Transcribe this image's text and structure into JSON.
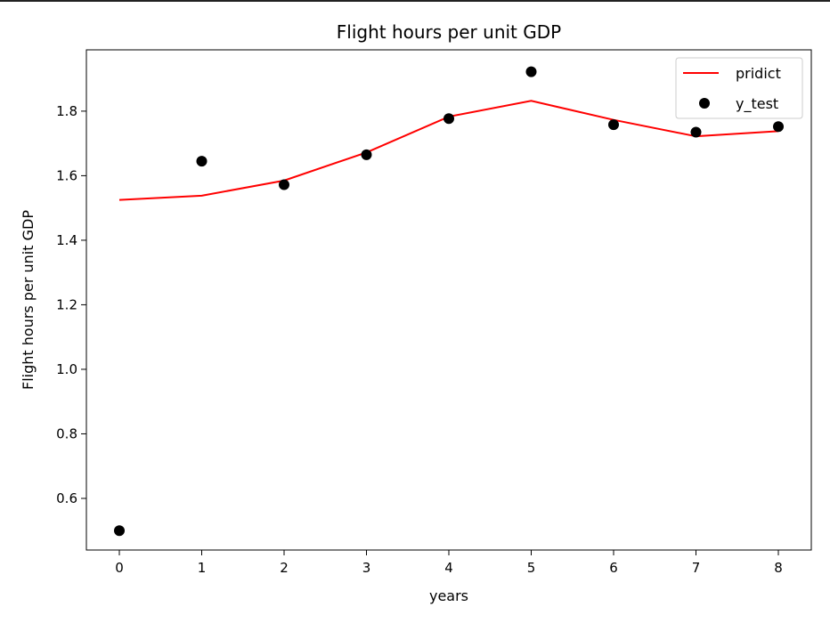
{
  "chart_data": {
    "type": "line",
    "title": "Flight hours per unit GDP",
    "xlabel": "years",
    "ylabel": "Flight hours per unit GDP",
    "x": [
      0,
      1,
      2,
      3,
      4,
      5,
      6,
      7,
      8
    ],
    "xticks": [
      "0",
      "1",
      "2",
      "3",
      "4",
      "5",
      "6",
      "7",
      "8"
    ],
    "yticks": [
      "0.6",
      "0.8",
      "1.0",
      "1.2",
      "1.4",
      "1.6",
      "1.8"
    ],
    "xlim": [
      -0.4,
      8.4
    ],
    "ylim": [
      0.44,
      1.99
    ],
    "grid": false,
    "legend_position": "top-right",
    "series": [
      {
        "name": "pridict",
        "type": "line",
        "color": "#ff0000",
        "values": [
          1.525,
          1.538,
          1.585,
          1.672,
          1.783,
          1.832,
          1.773,
          1.722,
          1.738
        ]
      },
      {
        "name": "y_test",
        "type": "scatter",
        "color": "#000000",
        "values": [
          0.5,
          1.645,
          1.572,
          1.665,
          1.777,
          1.922,
          1.758,
          1.735,
          1.752
        ]
      }
    ]
  }
}
